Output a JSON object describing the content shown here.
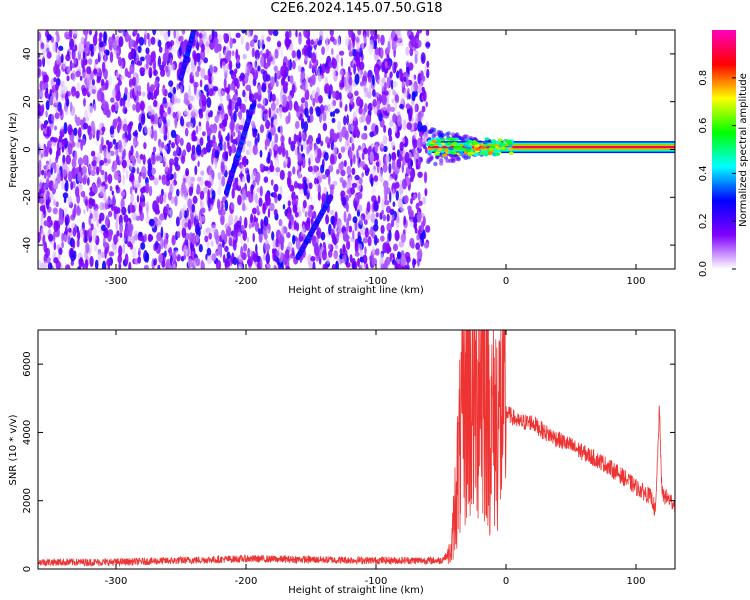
{
  "title": "C2E6.2024.145.07.50.G18",
  "colorbar": {
    "label": "Normalized spectral amplitude",
    "ticks": [
      "0.0",
      "0.2",
      "0.4",
      "0.6",
      "0.8"
    ],
    "tick_values": [
      0.0,
      0.2,
      0.4,
      0.6,
      0.8
    ],
    "range": [
      0,
      1
    ],
    "colors": [
      "#ffffff",
      "#8000ff",
      "#0000ff",
      "#00ffff",
      "#00ff00",
      "#ffff00",
      "#ff0000",
      "#ff00c0"
    ]
  },
  "chart_data": [
    {
      "type": "heatmap",
      "xlabel": "Height of straight line (km)",
      "ylabel": "Frequency (Hz)",
      "xlim": [
        -360,
        130
      ],
      "ylim": [
        -50,
        50
      ],
      "xticks": [
        -300,
        -200,
        -100,
        0,
        100
      ],
      "yticks": [
        -40,
        -20,
        0,
        20,
        40
      ],
      "noise_region": {
        "x": [
          -360,
          -60
        ],
        "amplitude": [
          0.05,
          0.25
        ]
      },
      "carrier_tone": {
        "x": [
          -60,
          130
        ],
        "frequency_hz": 1,
        "amplitude": 1.0
      },
      "sloped_features": [
        {
          "x": [
            -215,
            -195
          ],
          "frequency_hz": [
            -18,
            18
          ]
        },
        {
          "x": [
            -160,
            -135
          ],
          "frequency_hz": [
            -45,
            -20
          ]
        },
        {
          "x": [
            -250,
            -240
          ],
          "frequency_hz": [
            30,
            50
          ]
        }
      ]
    },
    {
      "type": "line",
      "xlabel": "Height of straight line (km)",
      "ylabel": "SNR (10 * v/v)",
      "xlim": [
        -360,
        130
      ],
      "ylim": [
        0,
        7000
      ],
      "xticks": [
        -300,
        -200,
        -100,
        0,
        100
      ],
      "yticks": [
        0,
        2000,
        4000,
        6000
      ],
      "color": "#ee3333",
      "series": [
        {
          "x": [
            -360,
            -300,
            -200,
            -100,
            -50,
            -42,
            -38,
            -33,
            -30,
            -25,
            -20,
            -15,
            -12,
            -5,
            0,
            10,
            20,
            30,
            50,
            75,
            90,
            100,
            110,
            113,
            115,
            118,
            120,
            130
          ],
          "y": [
            200,
            200,
            300,
            250,
            250,
            500,
            2500,
            4500,
            5500,
            5000,
            6000,
            5500,
            4200,
            4500,
            4600,
            4300,
            4300,
            4000,
            3600,
            3100,
            2700,
            2400,
            2150,
            2000,
            1600,
            4700,
            2200,
            1900
          ]
        }
      ]
    }
  ]
}
